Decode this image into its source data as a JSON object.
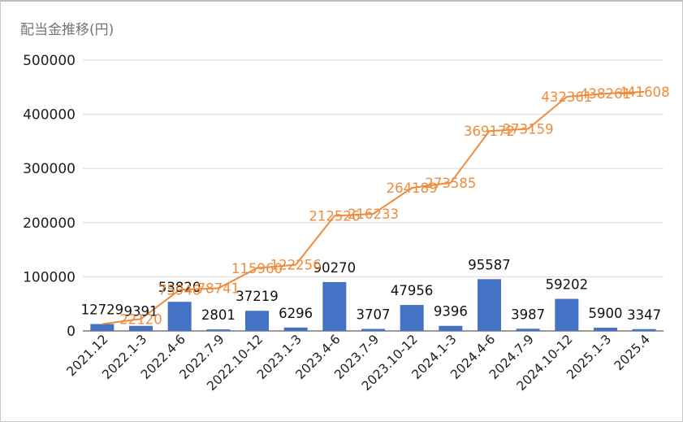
{
  "chart_data": {
    "type": "bar",
    "title": "配当金推移(円)",
    "xlabel": "",
    "ylabel": "",
    "ylim": [
      0,
      500000
    ],
    "yticks": [
      "0",
      "100000",
      "200000",
      "300000",
      "400000",
      "500000"
    ],
    "grid": true,
    "legend": "none",
    "categories": [
      "2021.12",
      "2022.1-3",
      "2022.4-6",
      "2022.7-9",
      "2022.10-12",
      "2023.1-3",
      "2023.4-6",
      "2023.7-9",
      "2023.10-12",
      "2024.1-3",
      "2024.4-6",
      "2024.7-9",
      "2024.10-12",
      "2025.1-3",
      "2025.4"
    ],
    "series": [
      {
        "type": "bar",
        "color": "#4472c4",
        "values": [
          12729,
          9391,
          53820,
          2801,
          37219,
          6296,
          90270,
          3707,
          47956,
          9396,
          95587,
          3987,
          59202,
          5900,
          3347
        ],
        "labels": [
          "12729",
          "9391",
          "53820",
          "2801",
          "37219",
          "6296",
          "90270",
          "3707",
          "47956",
          "9396",
          "95587",
          "3987",
          "59202",
          "5900",
          "3347"
        ]
      },
      {
        "type": "line",
        "color": "#ef8b3c",
        "values": [
          12729,
          22120,
          75940,
          78741,
          115960,
          122256,
          212526,
          216233,
          264189,
          273585,
          369172,
          373159,
          432361,
          438261,
          441608
        ],
        "labels": [
          "",
          "22120",
          "75940",
          "78741",
          "115960",
          "122256",
          "212526",
          "216233",
          "264189",
          "273585",
          "369172",
          "373159",
          "432361",
          "438261",
          "441608"
        ]
      }
    ]
  }
}
